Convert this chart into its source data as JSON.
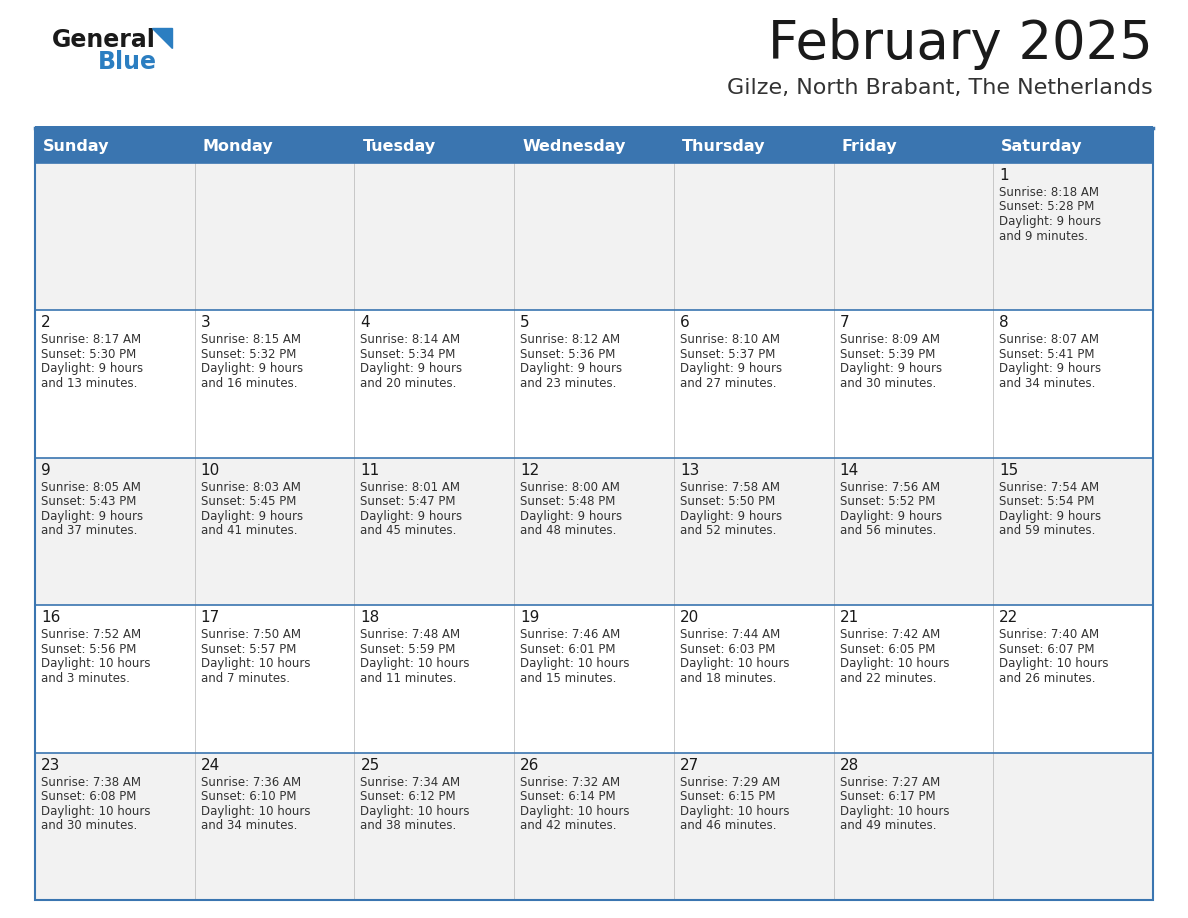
{
  "title": "February 2025",
  "subtitle": "Gilze, North Brabant, The Netherlands",
  "days_of_week": [
    "Sunday",
    "Monday",
    "Tuesday",
    "Wednesday",
    "Thursday",
    "Friday",
    "Saturday"
  ],
  "header_bg": "#3a75b0",
  "header_text": "#FFFFFF",
  "cell_bg_odd": "#f2f2f2",
  "cell_bg_even": "#ffffff",
  "cell_border_color": "#3a75b0",
  "row_border_color": "#3a75b0",
  "title_color": "#1a1a1a",
  "subtitle_color": "#333333",
  "day_num_color": "#1a1a1a",
  "cell_text_color": "#333333",
  "logo_text_color": "#1a1a1a",
  "logo_blue_color": "#2b7ec1",
  "calendar_data": [
    [
      null,
      null,
      null,
      null,
      null,
      null,
      {
        "day": "1",
        "sunrise": "8:18 AM",
        "sunset": "5:28 PM",
        "daylight": "9 hours\nand 9 minutes."
      }
    ],
    [
      {
        "day": "2",
        "sunrise": "8:17 AM",
        "sunset": "5:30 PM",
        "daylight": "9 hours\nand 13 minutes."
      },
      {
        "day": "3",
        "sunrise": "8:15 AM",
        "sunset": "5:32 PM",
        "daylight": "9 hours\nand 16 minutes."
      },
      {
        "day": "4",
        "sunrise": "8:14 AM",
        "sunset": "5:34 PM",
        "daylight": "9 hours\nand 20 minutes."
      },
      {
        "day": "5",
        "sunrise": "8:12 AM",
        "sunset": "5:36 PM",
        "daylight": "9 hours\nand 23 minutes."
      },
      {
        "day": "6",
        "sunrise": "8:10 AM",
        "sunset": "5:37 PM",
        "daylight": "9 hours\nand 27 minutes."
      },
      {
        "day": "7",
        "sunrise": "8:09 AM",
        "sunset": "5:39 PM",
        "daylight": "9 hours\nand 30 minutes."
      },
      {
        "day": "8",
        "sunrise": "8:07 AM",
        "sunset": "5:41 PM",
        "daylight": "9 hours\nand 34 minutes."
      }
    ],
    [
      {
        "day": "9",
        "sunrise": "8:05 AM",
        "sunset": "5:43 PM",
        "daylight": "9 hours\nand 37 minutes."
      },
      {
        "day": "10",
        "sunrise": "8:03 AM",
        "sunset": "5:45 PM",
        "daylight": "9 hours\nand 41 minutes."
      },
      {
        "day": "11",
        "sunrise": "8:01 AM",
        "sunset": "5:47 PM",
        "daylight": "9 hours\nand 45 minutes."
      },
      {
        "day": "12",
        "sunrise": "8:00 AM",
        "sunset": "5:48 PM",
        "daylight": "9 hours\nand 48 minutes."
      },
      {
        "day": "13",
        "sunrise": "7:58 AM",
        "sunset": "5:50 PM",
        "daylight": "9 hours\nand 52 minutes."
      },
      {
        "day": "14",
        "sunrise": "7:56 AM",
        "sunset": "5:52 PM",
        "daylight": "9 hours\nand 56 minutes."
      },
      {
        "day": "15",
        "sunrise": "7:54 AM",
        "sunset": "5:54 PM",
        "daylight": "9 hours\nand 59 minutes."
      }
    ],
    [
      {
        "day": "16",
        "sunrise": "7:52 AM",
        "sunset": "5:56 PM",
        "daylight": "10 hours\nand 3 minutes."
      },
      {
        "day": "17",
        "sunrise": "7:50 AM",
        "sunset": "5:57 PM",
        "daylight": "10 hours\nand 7 minutes."
      },
      {
        "day": "18",
        "sunrise": "7:48 AM",
        "sunset": "5:59 PM",
        "daylight": "10 hours\nand 11 minutes."
      },
      {
        "day": "19",
        "sunrise": "7:46 AM",
        "sunset": "6:01 PM",
        "daylight": "10 hours\nand 15 minutes."
      },
      {
        "day": "20",
        "sunrise": "7:44 AM",
        "sunset": "6:03 PM",
        "daylight": "10 hours\nand 18 minutes."
      },
      {
        "day": "21",
        "sunrise": "7:42 AM",
        "sunset": "6:05 PM",
        "daylight": "10 hours\nand 22 minutes."
      },
      {
        "day": "22",
        "sunrise": "7:40 AM",
        "sunset": "6:07 PM",
        "daylight": "10 hours\nand 26 minutes."
      }
    ],
    [
      {
        "day": "23",
        "sunrise": "7:38 AM",
        "sunset": "6:08 PM",
        "daylight": "10 hours\nand 30 minutes."
      },
      {
        "day": "24",
        "sunrise": "7:36 AM",
        "sunset": "6:10 PM",
        "daylight": "10 hours\nand 34 minutes."
      },
      {
        "day": "25",
        "sunrise": "7:34 AM",
        "sunset": "6:12 PM",
        "daylight": "10 hours\nand 38 minutes."
      },
      {
        "day": "26",
        "sunrise": "7:32 AM",
        "sunset": "6:14 PM",
        "daylight": "10 hours\nand 42 minutes."
      },
      {
        "day": "27",
        "sunrise": "7:29 AM",
        "sunset": "6:15 PM",
        "daylight": "10 hours\nand 46 minutes."
      },
      {
        "day": "28",
        "sunrise": "7:27 AM",
        "sunset": "6:17 PM",
        "daylight": "10 hours\nand 49 minutes."
      },
      null
    ]
  ],
  "fig_width": 11.88,
  "fig_height": 9.18,
  "dpi": 100
}
